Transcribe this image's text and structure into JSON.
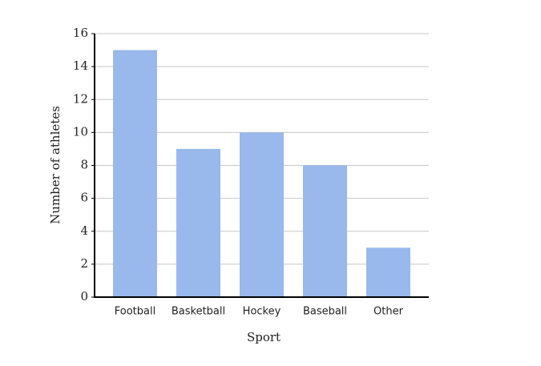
{
  "chart_data": {
    "type": "bar",
    "x_label": "Sport",
    "y_label": "Number of athletes",
    "categories": [
      "Football",
      "Basketball",
      "Hockey",
      "Baseball",
      "Other"
    ],
    "values": [
      15,
      9,
      10,
      8,
      3
    ],
    "color": "#99b8ec",
    "ylim": [
      0,
      16
    ],
    "yticks": [
      0,
      2,
      4,
      6,
      8,
      10,
      12,
      14,
      16
    ],
    "grid": true
  }
}
